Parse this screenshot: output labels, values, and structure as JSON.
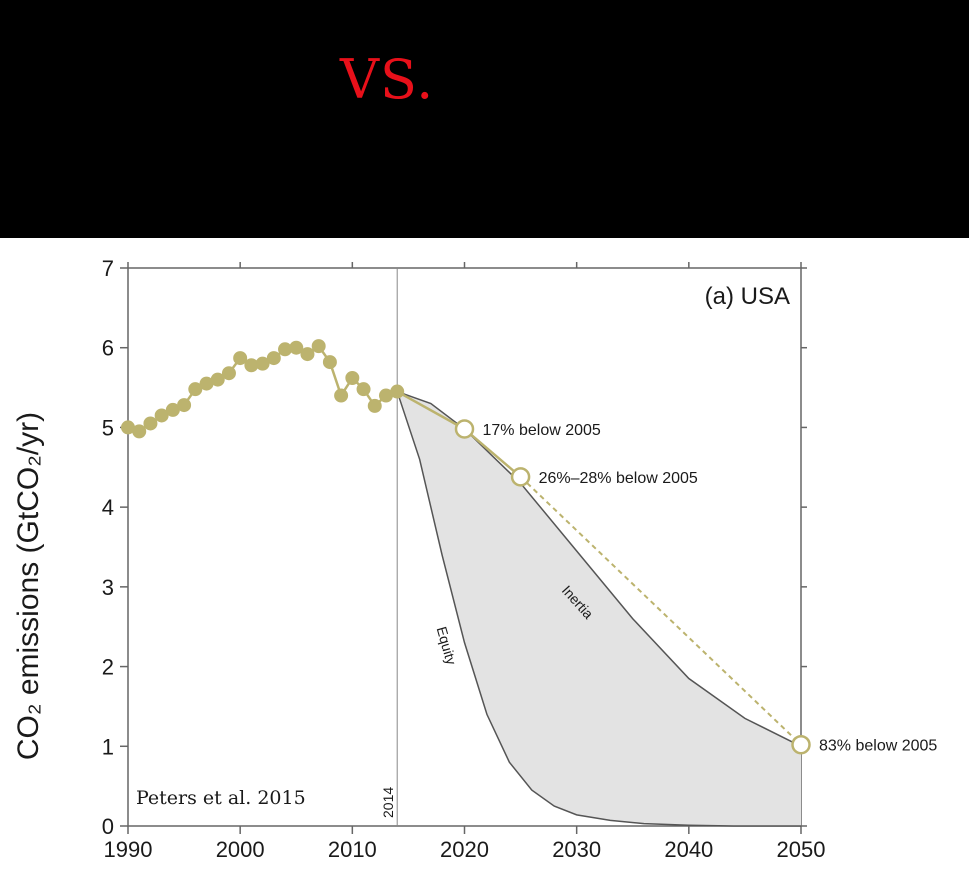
{
  "banner": {
    "text": "VS.",
    "color": "#e8101a"
  },
  "chart_data": {
    "type": "line",
    "panel_label": "(a) USA",
    "ylabel": "CO₂ emissions (GtCO₂/yr)",
    "xlabel": "",
    "xlim": [
      1990,
      2050
    ],
    "ylim": [
      0,
      7
    ],
    "x_ticks": [
      1990,
      2000,
      2010,
      2020,
      2030,
      2040,
      2050
    ],
    "y_ticks": [
      0,
      1,
      2,
      3,
      4,
      5,
      6,
      7
    ],
    "vertical_marker": {
      "x": 2014,
      "label": "2014"
    },
    "credit": "Peters et al. 2015",
    "series": [
      {
        "name": "historical",
        "color": "#bcb36e",
        "points": [
          [
            1990,
            5.0
          ],
          [
            1991,
            4.95
          ],
          [
            1992,
            5.05
          ],
          [
            1993,
            5.15
          ],
          [
            1994,
            5.22
          ],
          [
            1995,
            5.28
          ],
          [
            1996,
            5.48
          ],
          [
            1997,
            5.55
          ],
          [
            1998,
            5.6
          ],
          [
            1999,
            5.68
          ],
          [
            2000,
            5.87
          ],
          [
            2001,
            5.78
          ],
          [
            2002,
            5.8
          ],
          [
            2003,
            5.87
          ],
          [
            2004,
            5.98
          ],
          [
            2005,
            6.0
          ],
          [
            2006,
            5.92
          ],
          [
            2007,
            6.02
          ],
          [
            2008,
            5.82
          ],
          [
            2009,
            5.4
          ],
          [
            2010,
            5.62
          ],
          [
            2011,
            5.48
          ],
          [
            2012,
            5.27
          ],
          [
            2013,
            5.4
          ],
          [
            2014,
            5.45
          ]
        ]
      },
      {
        "name": "pledges",
        "color": "#bcb36e",
        "points": [
          {
            "x": 2020,
            "y": 4.98,
            "label": "17% below 2005"
          },
          {
            "x": 2025,
            "y": 4.38,
            "label": "26%–28% below 2005"
          },
          {
            "x": 2050,
            "y": 1.02,
            "label": "83% below 2005"
          }
        ]
      },
      {
        "name": "Inertia",
        "color": "#555555",
        "points": [
          [
            2014,
            5.45
          ],
          [
            2017,
            5.3
          ],
          [
            2020,
            4.98
          ],
          [
            2025,
            4.3
          ],
          [
            2030,
            3.45
          ],
          [
            2035,
            2.6
          ],
          [
            2040,
            1.85
          ],
          [
            2045,
            1.35
          ],
          [
            2050,
            1.0
          ]
        ]
      },
      {
        "name": "Equity",
        "color": "#555555",
        "points": [
          [
            2014,
            5.45
          ],
          [
            2016,
            4.6
          ],
          [
            2018,
            3.4
          ],
          [
            2020,
            2.3
          ],
          [
            2022,
            1.4
          ],
          [
            2024,
            0.8
          ],
          [
            2026,
            0.45
          ],
          [
            2028,
            0.25
          ],
          [
            2030,
            0.14
          ],
          [
            2033,
            0.07
          ],
          [
            2036,
            0.03
          ],
          [
            2040,
            0.01
          ],
          [
            2044,
            0.0
          ],
          [
            2050,
            0.0
          ]
        ]
      }
    ],
    "shaded_region": {
      "between": [
        "Equity",
        "Inertia"
      ],
      "color": "#e3e3e3"
    }
  }
}
